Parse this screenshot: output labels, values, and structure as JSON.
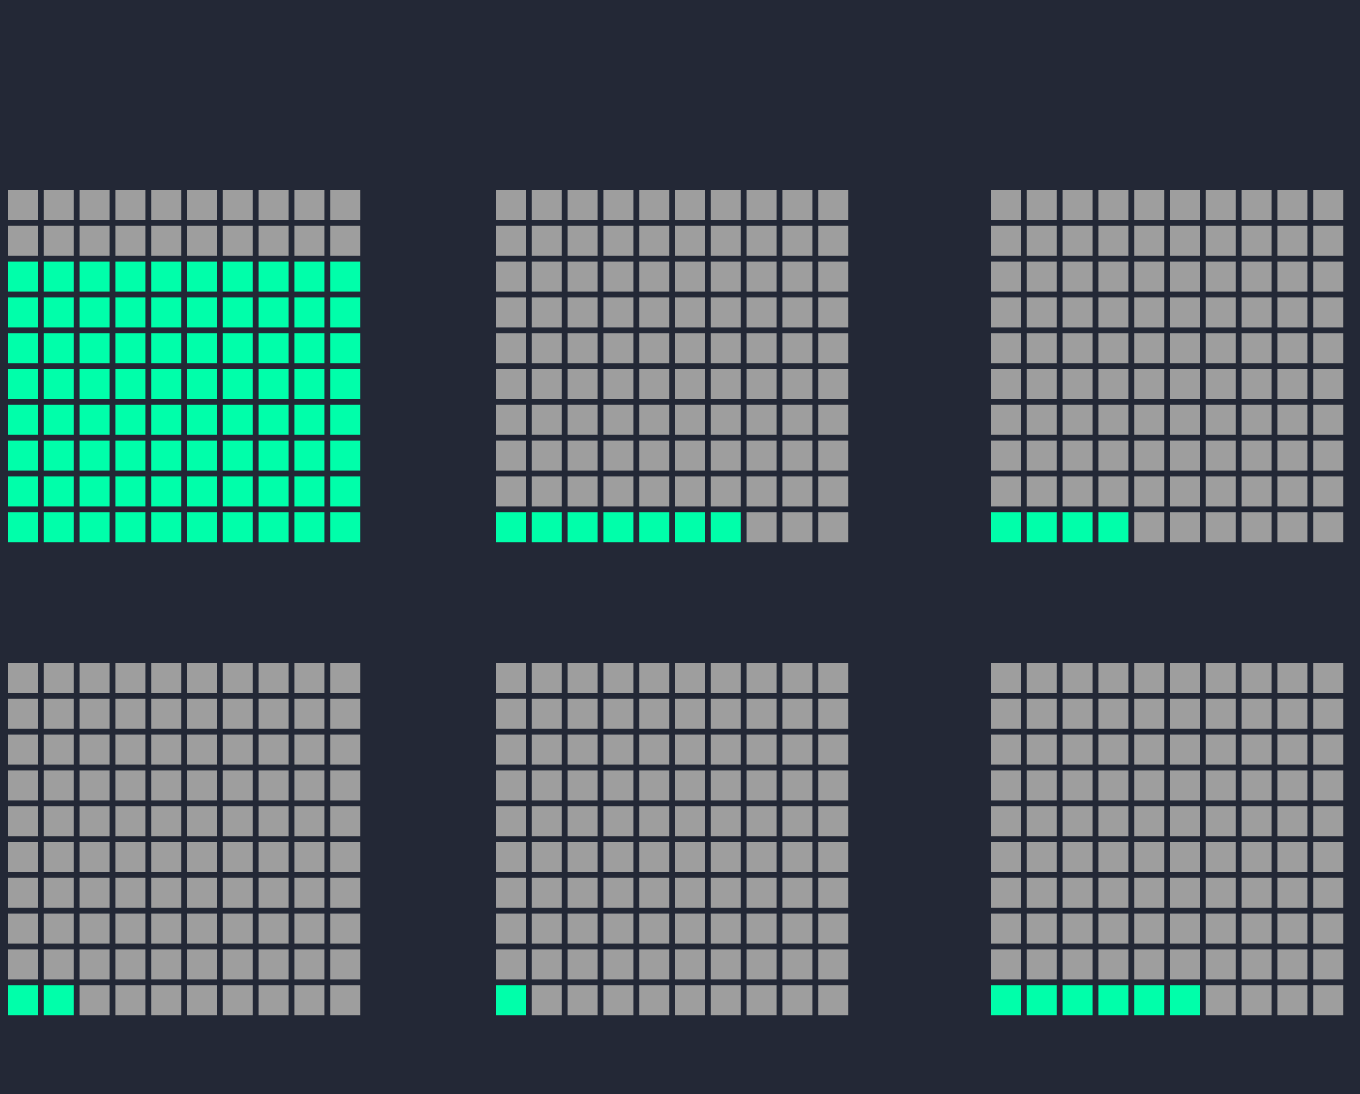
{
  "chart_data": {
    "type": "waffle",
    "values": [
      80,
      7,
      4,
      2,
      1,
      6
    ],
    "rows": 10,
    "columns": 10,
    "color": "#00ffaa",
    "empty_color": "#9e9e9e",
    "background": "#232836"
  }
}
